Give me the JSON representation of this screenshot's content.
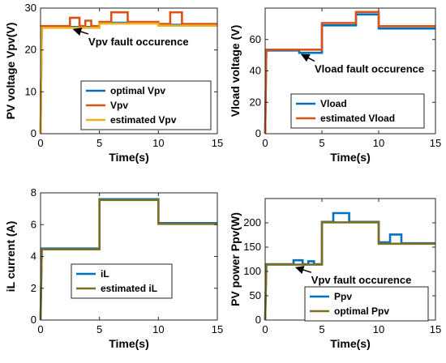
{
  "chart_data": [
    {
      "type": "line",
      "ylabel": "PV voltage Vpv(V)",
      "xlabel": "Time(s)",
      "xlim": [
        0,
        15
      ],
      "ylim": [
        0,
        30
      ],
      "xticks": [
        0,
        5,
        10,
        15
      ],
      "yticks": [
        0,
        10,
        20,
        30
      ],
      "grid": false,
      "legend_position": "bottom-right",
      "annotation": {
        "text": "Vpv fault occurence",
        "arrow_to": [
          2.6,
          25.5
        ],
        "text_at": [
          4.2,
          21.5
        ]
      },
      "series": [
        {
          "name": "optimal Vpv",
          "color": "#0072BD",
          "x": [
            0,
            0.1,
            5,
            5,
            10,
            10,
            15
          ],
          "y": [
            0,
            25.5,
            25.5,
            26.5,
            26.5,
            26,
            26
          ]
        },
        {
          "name": "Vpv",
          "color": "#D95319",
          "x": [
            0,
            0.1,
            2.5,
            2.5,
            3.3,
            3.3,
            3.8,
            3.8,
            4.3,
            4.3,
            5,
            5,
            6,
            6,
            7.4,
            7.4,
            10,
            10,
            11,
            11,
            12,
            12,
            15
          ],
          "y": [
            0,
            25.7,
            25.7,
            27.7,
            27.7,
            25.7,
            25.7,
            27,
            27,
            25.7,
            25.7,
            26.7,
            26.7,
            29,
            29,
            26.7,
            26.7,
            26.2,
            26.2,
            29,
            29,
            26.2,
            26.2
          ]
        },
        {
          "name": "estimated Vpv",
          "color": "#EDB120",
          "x": [
            0,
            0.1,
            5,
            5,
            10,
            10,
            15
          ],
          "y": [
            0,
            25.3,
            25.3,
            26.3,
            26.3,
            25.8,
            25.8
          ]
        }
      ]
    },
    {
      "type": "line",
      "ylabel": "Vload voltage (V)",
      "xlabel": "Time(s)",
      "xlim": [
        0,
        15
      ],
      "ylim": [
        0,
        80
      ],
      "xticks": [
        0,
        5,
        10,
        15
      ],
      "yticks": [
        0,
        20,
        40,
        60
      ],
      "grid": false,
      "legend_position": "bottom-right",
      "annotation": {
        "text": "Vload fault occurence",
        "arrow_to": [
          3,
          52
        ],
        "text_at": [
          4.5,
          40
        ]
      },
      "series": [
        {
          "name": "Vload",
          "color": "#0072BD",
          "x": [
            0,
            0.1,
            3,
            3,
            5,
            5,
            8,
            8,
            10,
            10,
            15
          ],
          "y": [
            0,
            53,
            53,
            51.5,
            51.5,
            69,
            69,
            76,
            76,
            67,
            67
          ]
        },
        {
          "name": "estimated Vload",
          "color": "#D95319",
          "x": [
            0,
            0.1,
            5,
            5,
            8,
            8,
            10,
            10,
            15
          ],
          "y": [
            0,
            53.5,
            53.5,
            70.5,
            70.5,
            77.5,
            77.5,
            68.5,
            68.5
          ]
        }
      ]
    },
    {
      "type": "line",
      "ylabel": "iL current (A)",
      "xlabel": "Time(s)",
      "xlim": [
        0,
        15
      ],
      "ylim": [
        0,
        8
      ],
      "xticks": [
        0,
        5,
        10,
        15
      ],
      "yticks": [
        0,
        2,
        4,
        6,
        8
      ],
      "grid": false,
      "legend_position": "bottom-left",
      "series": [
        {
          "name": "iL",
          "color": "#0072BD",
          "x": [
            0,
            0.1,
            5,
            5,
            10,
            10,
            15
          ],
          "y": [
            0,
            4.5,
            4.5,
            7.6,
            7.6,
            6.1,
            6.1
          ]
        },
        {
          "name": "estimated iL",
          "color": "#7E6F1E",
          "x": [
            0,
            0.1,
            5,
            5,
            10,
            10,
            15
          ],
          "y": [
            0,
            4.45,
            4.45,
            7.55,
            7.55,
            6.05,
            6.05
          ]
        }
      ]
    },
    {
      "type": "line",
      "ylabel": "PV power Ppv(W)",
      "xlabel": "Time(s)",
      "xlim": [
        0,
        15
      ],
      "ylim": [
        0,
        250
      ],
      "xticks": [
        0,
        5,
        10,
        15
      ],
      "yticks": [
        0,
        50,
        100,
        150,
        200
      ],
      "grid": false,
      "legend_position": "bottom-right",
      "annotation": {
        "text": "Vpv fault occurence",
        "arrow_to": [
          2.5,
          113
        ],
        "text_at": [
          4.2,
          78
        ]
      },
      "series": [
        {
          "name": "Ppv",
          "color": "#0072BD",
          "x": [
            0,
            0.1,
            2.5,
            2.5,
            3.3,
            3.3,
            3.8,
            3.8,
            4.3,
            4.3,
            5,
            5,
            6,
            6,
            7.4,
            7.4,
            10,
            10,
            11,
            11,
            12,
            12,
            15
          ],
          "y": [
            0,
            115,
            115,
            123,
            123,
            115,
            115,
            121,
            121,
            115,
            115,
            202,
            202,
            220,
            220,
            202,
            202,
            160,
            160,
            176,
            176,
            158,
            158
          ]
        },
        {
          "name": "optimal Ppv",
          "color": "#7E6F1E",
          "x": [
            0,
            0.1,
            5,
            5,
            10,
            10,
            15
          ],
          "y": [
            0,
            114,
            114,
            201,
            201,
            157,
            157
          ]
        }
      ]
    }
  ]
}
